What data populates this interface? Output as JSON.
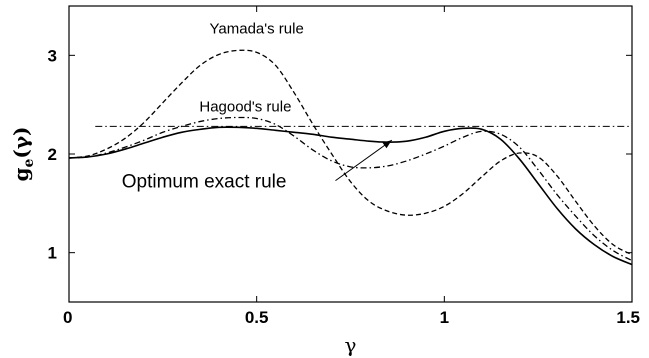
{
  "chart_data": {
    "type": "line",
    "title": "",
    "xlabel": "γ",
    "ylabel": "g",
    "ylabel_sub": "e",
    "ylabel_arg": "(γ)",
    "xlim": [
      0,
      1.5
    ],
    "ylim": [
      0.5,
      3.5
    ],
    "xticks": [
      0,
      0.5,
      1,
      1.5
    ],
    "xtick_labels": [
      "0",
      "0.5",
      "1",
      "1.5"
    ],
    "yticks": [
      1,
      2,
      3
    ],
    "ytick_labels": [
      "1",
      "2",
      "3"
    ],
    "grid": false,
    "legend": "none",
    "series": [
      {
        "name": "Optimum exact rule",
        "style": "solid",
        "x": [
          0,
          0.05,
          0.1,
          0.15,
          0.2,
          0.25,
          0.3,
          0.35,
          0.4,
          0.45,
          0.5,
          0.55,
          0.6,
          0.65,
          0.7,
          0.75,
          0.8,
          0.85,
          0.9,
          0.95,
          1.0,
          1.05,
          1.1,
          1.15,
          1.2,
          1.25,
          1.3,
          1.35,
          1.4,
          1.45,
          1.5
        ],
        "y": [
          1.96,
          1.97,
          2.0,
          2.05,
          2.11,
          2.17,
          2.22,
          2.25,
          2.27,
          2.27,
          2.26,
          2.24,
          2.22,
          2.2,
          2.17,
          2.15,
          2.13,
          2.12,
          2.13,
          2.17,
          2.23,
          2.26,
          2.25,
          2.15,
          1.95,
          1.7,
          1.45,
          1.24,
          1.08,
          0.96,
          0.88
        ]
      },
      {
        "name": "Yamada's rule",
        "style": "dashed",
        "x": [
          0,
          0.05,
          0.1,
          0.15,
          0.2,
          0.25,
          0.3,
          0.35,
          0.4,
          0.45,
          0.5,
          0.55,
          0.6,
          0.65,
          0.7,
          0.75,
          0.8,
          0.85,
          0.9,
          0.95,
          1.0,
          1.05,
          1.1,
          1.15,
          1.2,
          1.25,
          1.3,
          1.35,
          1.4,
          1.45,
          1.5
        ],
        "y": [
          1.96,
          1.98,
          2.05,
          2.16,
          2.32,
          2.52,
          2.72,
          2.9,
          3.01,
          3.05,
          3.03,
          2.9,
          2.62,
          2.3,
          2.0,
          1.72,
          1.52,
          1.42,
          1.38,
          1.4,
          1.47,
          1.6,
          1.77,
          1.93,
          2.01,
          1.97,
          1.78,
          1.52,
          1.27,
          1.08,
          0.98
        ]
      },
      {
        "name": "Hagood's rule",
        "style": "dash-dot",
        "x": [
          0,
          0.05,
          0.1,
          0.15,
          0.2,
          0.25,
          0.3,
          0.35,
          0.4,
          0.45,
          0.5,
          0.55,
          0.6,
          0.65,
          0.7,
          0.75,
          0.8,
          0.85,
          0.9,
          0.95,
          1.0,
          1.05,
          1.1,
          1.15,
          1.2,
          1.25,
          1.3,
          1.35,
          1.4,
          1.45,
          1.5
        ],
        "y": [
          1.96,
          1.97,
          2.01,
          2.07,
          2.14,
          2.22,
          2.28,
          2.33,
          2.36,
          2.37,
          2.36,
          2.3,
          2.18,
          2.04,
          1.93,
          1.87,
          1.86,
          1.88,
          1.93,
          2.0,
          2.08,
          2.17,
          2.23,
          2.2,
          2.07,
          1.84,
          1.59,
          1.37,
          1.17,
          1.02,
          0.92
        ]
      },
      {
        "name": "",
        "style": "dash-dot-thin",
        "x": [
          0.07,
          1.5
        ],
        "y": [
          2.28,
          2.28
        ]
      }
    ],
    "annotations": [
      {
        "text": "Yamada's rule",
        "x": 0.5,
        "y": 3.22
      },
      {
        "text": "Hagood's rule",
        "x": 0.47,
        "y": 2.43
      },
      {
        "text": "Optimum exact rule",
        "x": 0.36,
        "y": 1.66
      }
    ],
    "arrow": {
      "from_x": 0.71,
      "from_y": 1.73,
      "to_x": 0.86,
      "to_y": 2.14
    }
  }
}
